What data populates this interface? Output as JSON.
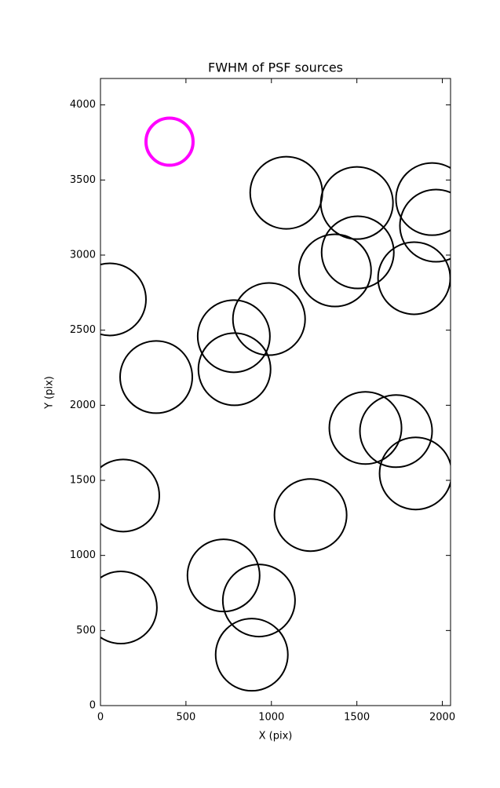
{
  "chart_data": {
    "type": "scatter",
    "title": "FWHM of PSF sources",
    "x_label": "X (pix)",
    "y_label": "Y (pix)",
    "xlim": [
      0,
      2048
    ],
    "ylim": [
      0,
      4176
    ],
    "xticks": [
      0,
      500,
      1000,
      1500,
      2000
    ],
    "yticks": [
      0,
      500,
      1000,
      1500,
      2000,
      2500,
      3000,
      3500,
      4000
    ],
    "series": [
      {
        "color": "#000000",
        "marker_radius": 46,
        "line_width": 2,
        "x": [
          1087,
          1500,
          1940,
          1963,
          1505,
          1372,
          1835,
          55,
          986,
          780,
          784,
          326,
          1550,
          1729,
          1844,
          133,
          1229,
          720,
          927,
          119,
          885
        ],
        "y": [
          3415,
          3347,
          3373,
          3196,
          3018,
          2898,
          2846,
          2705,
          2574,
          2460,
          2240,
          2188,
          1849,
          1828,
          1546,
          1399,
          1269,
          867,
          700,
          653,
          339
        ]
      },
      {
        "color": "#ff00ff",
        "marker_radius": 30,
        "line_width": 4,
        "x": [
          404
        ],
        "y": [
          3755
        ]
      }
    ]
  }
}
